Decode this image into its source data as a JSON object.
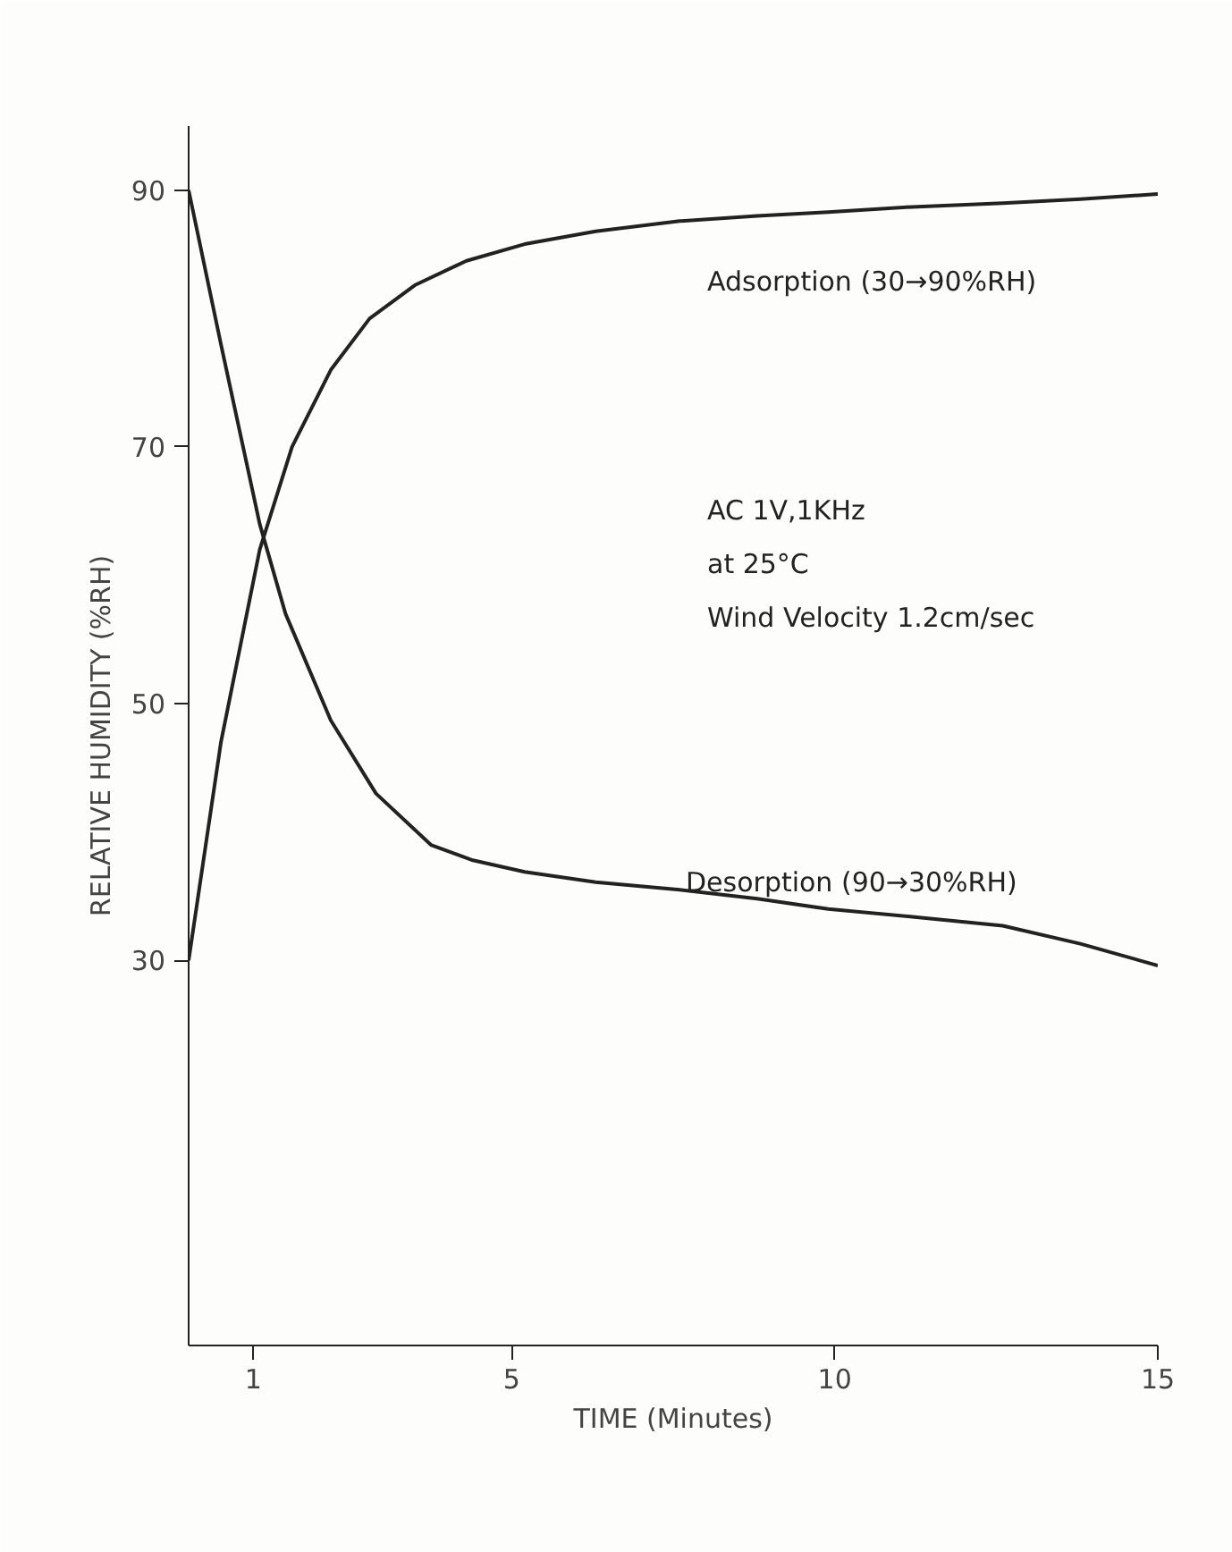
{
  "chart_data": {
    "type": "line",
    "xlabel": "TIME (Minutes)",
    "ylabel": "RELATIVE HUMIDITY (%RH)",
    "xlim": [
      0,
      15
    ],
    "ylim": [
      0,
      95
    ],
    "xticks": [
      1,
      5,
      10,
      15
    ],
    "yticks": [
      30,
      50,
      70,
      90
    ],
    "grid": false,
    "marker": "none",
    "line_style": "solid",
    "series": [
      {
        "color": "#222222",
        "x": [
          0,
          0.5,
          1.1,
          1.6,
          2.2,
          2.8,
          3.5,
          4.3,
          5.2,
          6.3,
          7.6,
          8.8,
          9.9,
          11.2,
          12.6,
          13.8,
          15
        ],
        "values": [
          30,
          47,
          62,
          70,
          76,
          80,
          82.6,
          84.5,
          85.8,
          86.8,
          87.6,
          88,
          88.3,
          88.7,
          89,
          89.3,
          89.7
        ]
      },
      {
        "color": "#222222",
        "x": [
          0,
          0.5,
          1.1,
          1.5,
          2.2,
          2.9,
          3.75,
          4.4,
          5.2,
          6.3,
          7.6,
          8.8,
          9.9,
          11.2,
          12.6,
          13.8,
          15
        ],
        "values": [
          90,
          78,
          64,
          57,
          48.7,
          43,
          39,
          37.8,
          36.9,
          36.1,
          35.5,
          34.8,
          34,
          33.4,
          32.7,
          31.3,
          29.6
        ]
      }
    ],
    "annotations": [
      "Adsorption (30→90%RH)",
      "Desorption (90→30%RH)",
      "AC 1V,1KHz",
      "at 25°C",
      "Wind Velocity 1.2cm/sec"
    ]
  }
}
